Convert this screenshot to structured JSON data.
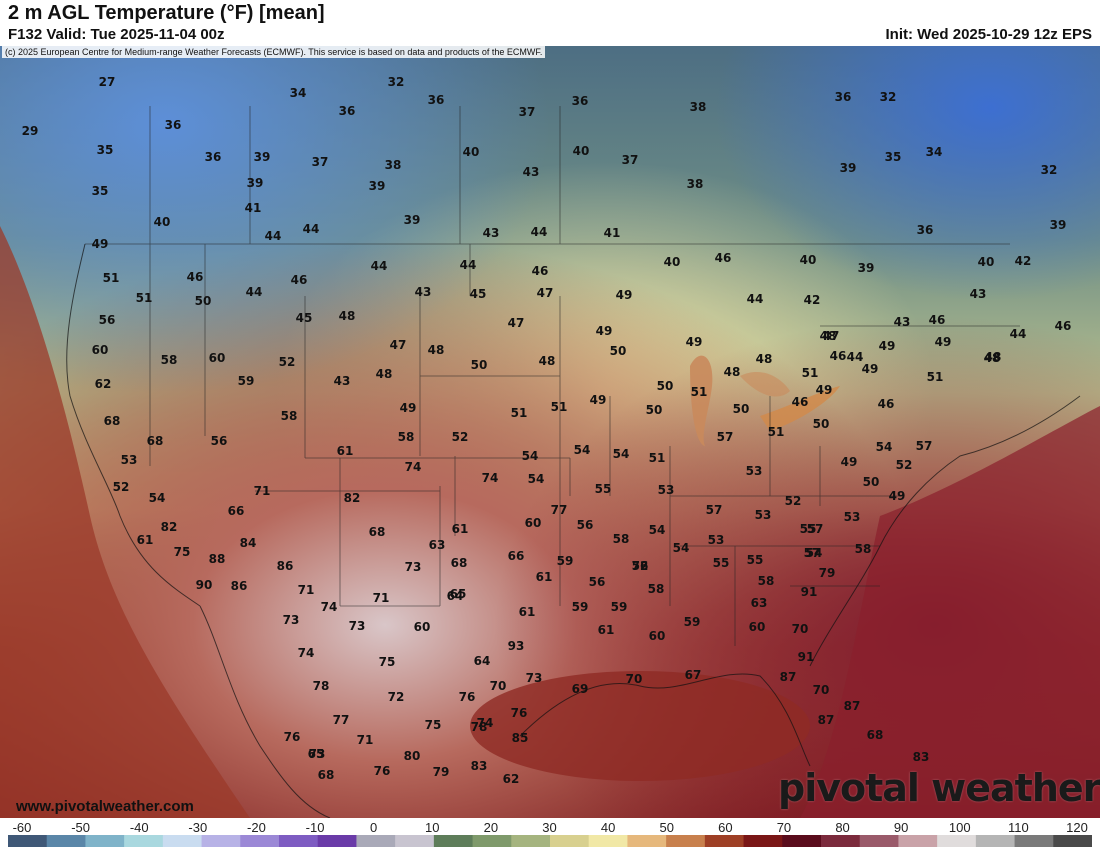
{
  "header": {
    "title": "2 m AGL Temperature (°F) [mean]",
    "valid": "F132 Valid: Tue 2025-11-04 00z",
    "init": "Init: Wed 2025-10-29 12z EPS"
  },
  "copyright": "(c) 2025 European Centre for Medium-range Weather Forecasts (ECMWF). This service is based on data and products of the ECMWF.",
  "footer": {
    "website": "www.pivotalweather.com",
    "brand": "pivotal weather"
  },
  "colorbar": {
    "ticks": [
      "-60",
      "-50",
      "-40",
      "-30",
      "-20",
      "-10",
      "0",
      "10",
      "20",
      "30",
      "40",
      "50",
      "60",
      "70",
      "80",
      "90",
      "100",
      "110",
      "120"
    ],
    "colors": [
      "#3f5877",
      "#5a86a8",
      "#7fb3c9",
      "#a9d8df",
      "#c9dcf0",
      "#b7b2e6",
      "#9b88d6",
      "#7e5cc2",
      "#6a3ba8",
      "#a9a9b8",
      "#c8c4d0",
      "#5e7d5a",
      "#7f9a6b",
      "#a5b47f",
      "#d8d08f",
      "#f1e8a6",
      "#e6b87c",
      "#c8804d",
      "#9e3f25",
      "#7a1616",
      "#5a0c1c",
      "#7b2a3c",
      "#9a5a6a",
      "#c9a2a8",
      "#e0dcdc",
      "#b5b5b5",
      "#7a7a7a",
      "#4a4a4a"
    ]
  },
  "map": {
    "labels": [
      {
        "v": "27"
      },
      {
        "v": "32"
      },
      {
        "v": "34"
      },
      {
        "v": "36"
      },
      {
        "v": "36"
      },
      {
        "v": "29"
      },
      {
        "v": "36"
      },
      {
        "v": "37"
      },
      {
        "v": "36"
      },
      {
        "v": "36"
      },
      {
        "v": "38"
      },
      {
        "v": "32"
      },
      {
        "v": "35"
      },
      {
        "v": "36"
      },
      {
        "v": "39"
      },
      {
        "v": "37"
      },
      {
        "v": "38"
      },
      {
        "v": "40"
      },
      {
        "v": "40"
      },
      {
        "v": "37"
      },
      {
        "v": "35"
      },
      {
        "v": "34"
      },
      {
        "v": "35"
      },
      {
        "v": "39"
      },
      {
        "v": "39"
      },
      {
        "v": "43"
      },
      {
        "v": "38"
      },
      {
        "v": "39"
      },
      {
        "v": "32"
      },
      {
        "v": "41"
      },
      {
        "v": "39"
      },
      {
        "v": "40"
      },
      {
        "v": "36"
      },
      {
        "v": "40"
      },
      {
        "v": "44"
      },
      {
        "v": "44"
      },
      {
        "v": "43"
      },
      {
        "v": "44"
      },
      {
        "v": "41"
      },
      {
        "v": "39"
      },
      {
        "v": "49"
      },
      {
        "v": "51"
      },
      {
        "v": "46"
      },
      {
        "v": "46"
      },
      {
        "v": "44"
      },
      {
        "v": "44"
      },
      {
        "v": "46"
      },
      {
        "v": "46"
      },
      {
        "v": "40"
      },
      {
        "v": "39"
      },
      {
        "v": "40"
      },
      {
        "v": "42"
      },
      {
        "v": "51"
      },
      {
        "v": "50"
      },
      {
        "v": "44"
      },
      {
        "v": "43"
      },
      {
        "v": "45"
      },
      {
        "v": "47"
      },
      {
        "v": "43"
      },
      {
        "v": "56"
      },
      {
        "v": "45"
      },
      {
        "v": "48"
      },
      {
        "v": "47"
      },
      {
        "v": "49"
      },
      {
        "v": "44"
      },
      {
        "v": "42"
      },
      {
        "v": "43"
      },
      {
        "v": "46"
      },
      {
        "v": "44"
      },
      {
        "v": "46"
      },
      {
        "v": "60"
      },
      {
        "v": "58"
      },
      {
        "v": "60"
      },
      {
        "v": "52"
      },
      {
        "v": "47"
      },
      {
        "v": "48"
      },
      {
        "v": "49"
      },
      {
        "v": "48"
      },
      {
        "v": "49"
      },
      {
        "v": "47"
      },
      {
        "v": "46"
      },
      {
        "v": "49"
      },
      {
        "v": "48"
      },
      {
        "v": "62"
      },
      {
        "v": "59"
      },
      {
        "v": "43"
      },
      {
        "v": "48"
      },
      {
        "v": "50"
      },
      {
        "v": "48"
      },
      {
        "v": "50"
      },
      {
        "v": "48"
      },
      {
        "v": "44"
      },
      {
        "v": "49"
      },
      {
        "v": "48"
      },
      {
        "v": "49"
      },
      {
        "v": "58"
      },
      {
        "v": "49"
      },
      {
        "v": "51"
      },
      {
        "v": "51"
      },
      {
        "v": "49"
      },
      {
        "v": "50"
      },
      {
        "v": "48"
      },
      {
        "v": "51"
      },
      {
        "v": "46"
      },
      {
        "v": "49"
      },
      {
        "v": "46"
      },
      {
        "v": "51"
      },
      {
        "v": "68"
      },
      {
        "v": "68"
      },
      {
        "v": "56"
      },
      {
        "v": "58"
      },
      {
        "v": "52"
      },
      {
        "v": "50"
      },
      {
        "v": "51"
      },
      {
        "v": "50"
      },
      {
        "v": "54"
      },
      {
        "v": "57"
      },
      {
        "v": "61"
      },
      {
        "v": "54"
      },
      {
        "v": "54"
      },
      {
        "v": "51"
      },
      {
        "v": "53"
      },
      {
        "v": "74"
      },
      {
        "v": "57"
      },
      {
        "v": "51"
      },
      {
        "v": "50"
      },
      {
        "v": "49"
      },
      {
        "v": "54"
      },
      {
        "v": "52"
      },
      {
        "v": "52"
      },
      {
        "v": "71"
      },
      {
        "v": "74"
      },
      {
        "v": "54"
      },
      {
        "v": "55"
      },
      {
        "v": "53"
      },
      {
        "v": "53"
      },
      {
        "v": "50"
      },
      {
        "v": "54"
      },
      {
        "v": "82"
      },
      {
        "v": "66"
      },
      {
        "v": "77"
      },
      {
        "v": "57"
      },
      {
        "v": "53"
      },
      {
        "v": "52"
      },
      {
        "v": "49"
      },
      {
        "v": "57"
      },
      {
        "v": "55"
      },
      {
        "v": "68"
      },
      {
        "v": "61"
      },
      {
        "v": "60"
      },
      {
        "v": "56"
      },
      {
        "v": "54"
      },
      {
        "v": "53"
      },
      {
        "v": "53"
      },
      {
        "v": "54"
      },
      {
        "v": "82"
      },
      {
        "v": "61"
      },
      {
        "v": "84"
      },
      {
        "v": "63"
      },
      {
        "v": "58"
      },
      {
        "v": "54"
      },
      {
        "v": "57"
      },
      {
        "v": "58"
      },
      {
        "v": "75"
      },
      {
        "v": "88"
      },
      {
        "v": "86"
      },
      {
        "v": "73"
      },
      {
        "v": "68"
      },
      {
        "v": "66"
      },
      {
        "v": "59"
      },
      {
        "v": "56"
      },
      {
        "v": "55"
      },
      {
        "v": "55"
      },
      {
        "v": "72"
      },
      {
        "v": "90"
      },
      {
        "v": "86"
      },
      {
        "v": "71"
      },
      {
        "v": "65"
      },
      {
        "v": "61"
      },
      {
        "v": "56"
      },
      {
        "v": "58"
      },
      {
        "v": "58"
      },
      {
        "v": "79"
      },
      {
        "v": "74"
      },
      {
        "v": "71"
      },
      {
        "v": "64"
      },
      {
        "v": "61"
      },
      {
        "v": "59"
      },
      {
        "v": "59"
      },
      {
        "v": "63"
      },
      {
        "v": "91"
      },
      {
        "v": "73"
      },
      {
        "v": "73"
      },
      {
        "v": "60"
      },
      {
        "v": "61"
      },
      {
        "v": "60"
      },
      {
        "v": "59"
      },
      {
        "v": "60"
      },
      {
        "v": "70"
      },
      {
        "v": "93"
      },
      {
        "v": "74"
      },
      {
        "v": "75"
      },
      {
        "v": "64"
      },
      {
        "v": "91"
      },
      {
        "v": "78"
      },
      {
        "v": "70"
      },
      {
        "v": "72"
      },
      {
        "v": "69"
      },
      {
        "v": "70"
      },
      {
        "v": "67"
      },
      {
        "v": "73"
      },
      {
        "v": "87"
      },
      {
        "v": "70"
      },
      {
        "v": "77"
      },
      {
        "v": "76"
      },
      {
        "v": "75"
      },
      {
        "v": "74"
      },
      {
        "v": "76"
      },
      {
        "v": "87"
      },
      {
        "v": "87"
      },
      {
        "v": "76"
      },
      {
        "v": "71"
      },
      {
        "v": "73"
      },
      {
        "v": "78"
      },
      {
        "v": "85"
      },
      {
        "v": "68"
      },
      {
        "v": "65"
      },
      {
        "v": "80"
      },
      {
        "v": "83"
      },
      {
        "v": "83"
      },
      {
        "v": "68"
      },
      {
        "v": "76"
      },
      {
        "v": "79"
      },
      {
        "v": "62"
      }
    ]
  }
}
